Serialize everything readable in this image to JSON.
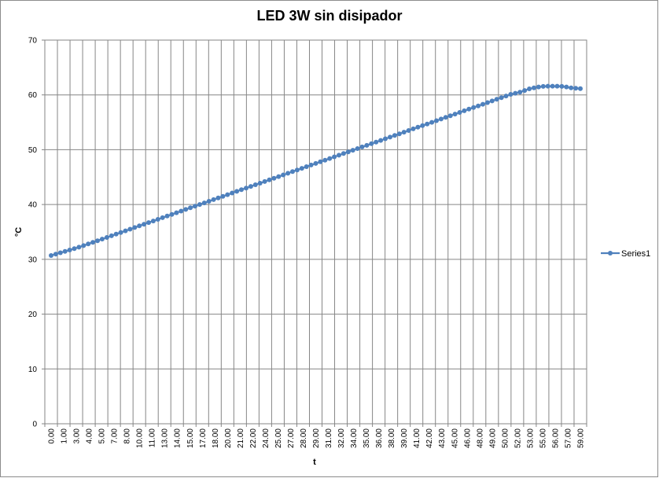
{
  "chart_data": {
    "type": "line",
    "title": "LED 3W  sin disipador",
    "xlabel": "t",
    "ylabel": "°C",
    "ylim": [
      0,
      70
    ],
    "y_ticks": [
      0,
      10,
      20,
      30,
      40,
      50,
      60,
      70
    ],
    "x_tick_labels": [
      "0.00",
      "1.00",
      "3.00",
      "4.00",
      "5.00",
      "7.00",
      "8.00",
      "10.00",
      "11.00",
      "13.00",
      "14.00",
      "15.00",
      "17.00",
      "18.00",
      "20.00",
      "21.00",
      "22.00",
      "24.00",
      "25.00",
      "27.00",
      "28.00",
      "29.00",
      "31.00",
      "32.00",
      "34.00",
      "35.00",
      "36.00",
      "38.00",
      "39.00",
      "41.00",
      "42.00",
      "43.00",
      "45.00",
      "46.00",
      "48.00",
      "49.00",
      "50.00",
      "52.00",
      "53.00",
      "55.00",
      "56.00",
      "57.00",
      "59.00"
    ],
    "grid": true,
    "legend_position": "right",
    "series": [
      {
        "name": "Series1",
        "color": "#4f81bd",
        "values": [
          30.7,
          30.95,
          31.2,
          31.45,
          31.7,
          31.95,
          32.22,
          32.5,
          32.8,
          33.1,
          33.4,
          33.7,
          34.0,
          34.3,
          34.6,
          34.9,
          35.2,
          35.5,
          35.8,
          36.1,
          36.4,
          36.7,
          37.0,
          37.3,
          37.6,
          37.9,
          38.2,
          38.5,
          38.8,
          39.1,
          39.4,
          39.7,
          40.0,
          40.3,
          40.6,
          40.9,
          41.2,
          41.5,
          41.8,
          42.1,
          42.4,
          42.7,
          43.0,
          43.3,
          43.6,
          43.9,
          44.2,
          44.5,
          44.8,
          45.1,
          45.4,
          45.7,
          46.0,
          46.3,
          46.6,
          46.9,
          47.2,
          47.5,
          47.8,
          48.1,
          48.4,
          48.7,
          49.0,
          49.3,
          49.6,
          49.9,
          50.2,
          50.5,
          50.8,
          51.1,
          51.4,
          51.7,
          52.0,
          52.3,
          52.6,
          52.9,
          53.2,
          53.5,
          53.8,
          54.1,
          54.4,
          54.7,
          55.0,
          55.3,
          55.6,
          55.9,
          56.2,
          56.5,
          56.8,
          57.1,
          57.4,
          57.7,
          58.0,
          58.3,
          58.6,
          58.9,
          59.2,
          59.5,
          59.8,
          60.1,
          60.3,
          60.5,
          60.8,
          61.1,
          61.3,
          61.45,
          61.55,
          61.6,
          61.6,
          61.6,
          61.55,
          61.45,
          61.3,
          61.2,
          61.15
        ]
      }
    ]
  }
}
